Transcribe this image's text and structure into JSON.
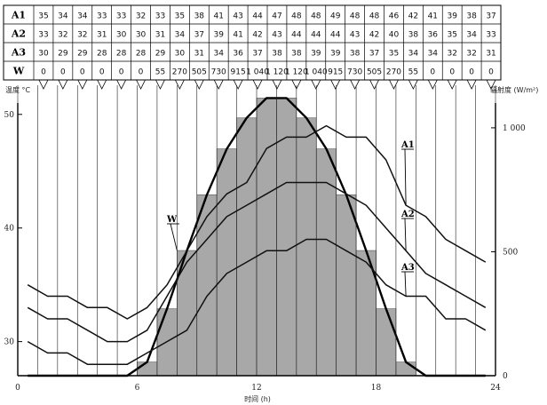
{
  "chart_data": {
    "type": "line",
    "title": "",
    "xlabel": "时间 (h)",
    "ylabel_left": "温度 °C",
    "ylabel_right": "辐射度 (W/m²)",
    "x_ticks": [
      "0",
      "6",
      "12",
      "18",
      "24"
    ],
    "xlim": [
      0,
      24
    ],
    "ylim_left": [
      27,
      51
    ],
    "ylim_right": [
      0,
      1100
    ],
    "y_ticks_left": [
      "30",
      "40",
      "50"
    ],
    "y_ticks_right": [
      "0",
      "500",
      "1 000"
    ],
    "grid_vertical": true,
    "table_headers": [
      "A1",
      "A2",
      "A3",
      "W"
    ],
    "hours": [
      0,
      1,
      2,
      3,
      4,
      5,
      6,
      7,
      8,
      9,
      10,
      11,
      12,
      13,
      14,
      15,
      16,
      17,
      18,
      19,
      20,
      21,
      22,
      23
    ],
    "series": [
      {
        "name": "A1",
        "label": "A1",
        "axis": "left",
        "values": [
          35,
          34,
          34,
          33,
          33,
          32,
          33,
          35,
          38,
          41,
          43,
          44,
          47,
          48,
          48,
          49,
          48,
          48,
          46,
          42,
          41,
          39,
          38,
          37
        ],
        "labels": [
          "35",
          "34",
          "34",
          "33",
          "33",
          "32",
          "33",
          "35",
          "38",
          "41",
          "43",
          "44",
          "47",
          "48",
          "48",
          "49",
          "48",
          "48",
          "46",
          "42",
          "41",
          "39",
          "38",
          "37"
        ]
      },
      {
        "name": "A2",
        "label": "A2",
        "axis": "left",
        "values": [
          33,
          32,
          32,
          31,
          30,
          30,
          31,
          34,
          37,
          39,
          41,
          42,
          43,
          44,
          44,
          44,
          43,
          42,
          40,
          38,
          36,
          35,
          34,
          33
        ],
        "labels": [
          "33",
          "32",
          "32",
          "31",
          "30",
          "30",
          "31",
          "34",
          "37",
          "39",
          "41",
          "42",
          "43",
          "44",
          "44",
          "44",
          "43",
          "42",
          "40",
          "38",
          "36",
          "35",
          "34",
          "33"
        ]
      },
      {
        "name": "A3",
        "label": "A3",
        "axis": "left",
        "values": [
          30,
          29,
          29,
          28,
          28,
          28,
          29,
          30,
          31,
          34,
          36,
          37,
          38,
          38,
          39,
          39,
          38,
          37,
          35,
          34,
          34,
          32,
          32,
          31
        ],
        "labels": [
          "30",
          "29",
          "29",
          "28",
          "28",
          "28",
          "29",
          "30",
          "31",
          "34",
          "36",
          "37",
          "38",
          "38",
          "39",
          "39",
          "38",
          "37",
          "35",
          "34",
          "34",
          "32",
          "32",
          "31"
        ]
      },
      {
        "name": "W",
        "label": "W",
        "axis": "right",
        "kind": "bar",
        "values": [
          0,
          0,
          0,
          0,
          0,
          0,
          55,
          270,
          505,
          730,
          915,
          1040,
          1120,
          1120,
          1040,
          915,
          730,
          505,
          270,
          55,
          0,
          0,
          0,
          0
        ],
        "labels": [
          "0",
          "0",
          "0",
          "0",
          "0",
          "0",
          "55",
          "270",
          "505",
          "730",
          "915",
          "1 040",
          "1 120",
          "1 120",
          "1 040",
          "915",
          "730",
          "505",
          "270",
          "55",
          "0",
          "0",
          "0",
          "0"
        ]
      }
    ]
  }
}
